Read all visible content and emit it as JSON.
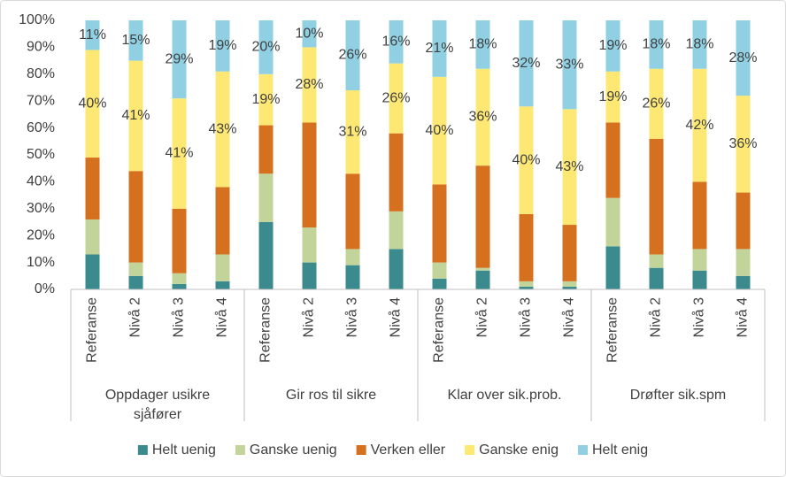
{
  "chart_data": {
    "type": "stacked_bar",
    "categories": [
      "Referanse",
      "Nivå 2",
      "Nivå 3",
      "Nivå 4",
      "Referanse",
      "Nivå 2",
      "Nivå 3",
      "Nivå 4",
      "Referanse",
      "Nivå 2",
      "Nivå 3",
      "Nivå 4",
      "Referanse",
      "Nivå 2",
      "Nivå 3",
      "Nivå 4"
    ],
    "category_groups": [
      "Oppdager usikre sjåfører",
      "Gir ros til sikre",
      "Klar over sik.prob.",
      "Drøfter sik.spm"
    ],
    "series": [
      {
        "name": "Helt uenig",
        "color": "#3b8b8e",
        "values": [
          13,
          5,
          2,
          3,
          25,
          10,
          9,
          15,
          4,
          7,
          1,
          1,
          16,
          8,
          7,
          5
        ]
      },
      {
        "name": "Ganske uenig",
        "color": "#c3d49b",
        "values": [
          13,
          5,
          4,
          10,
          18,
          13,
          6,
          14,
          6,
          1,
          2,
          2,
          18,
          5,
          8,
          10
        ]
      },
      {
        "name": "Verken eller",
        "color": "#d5701f",
        "values": [
          23,
          34,
          24,
          25,
          18,
          39,
          28,
          29,
          29,
          38,
          25,
          21,
          28,
          43,
          25,
          21
        ]
      },
      {
        "name": "Ganske enig",
        "color": "#fde874",
        "values": [
          40,
          41,
          41,
          43,
          19,
          28,
          31,
          26,
          40,
          36,
          40,
          43,
          19,
          26,
          42,
          36
        ],
        "value_labels": [
          "40%",
          "41%",
          "41%",
          "43%",
          "19%",
          "28%",
          "31%",
          "26%",
          "40%",
          "36%",
          "40%",
          "43%",
          "19%",
          "26%",
          "42%",
          "36%"
        ]
      },
      {
        "name": "Helt enig",
        "color": "#90d0e2",
        "values": [
          11,
          15,
          29,
          19,
          20,
          10,
          26,
          16,
          21,
          18,
          32,
          33,
          19,
          18,
          18,
          28
        ],
        "value_labels": [
          "11%",
          "15%",
          "29%",
          "19%",
          "20%",
          "10%",
          "26%",
          "16%",
          "21%",
          "18%",
          "32%",
          "33%",
          "19%",
          "18%",
          "18%",
          "28%"
        ]
      }
    ],
    "ylim": [
      0,
      100
    ],
    "yticks": [
      {
        "value": 0,
        "label": "0%"
      },
      {
        "value": 10,
        "label": "10%"
      },
      {
        "value": 20,
        "label": "20%"
      },
      {
        "value": 30,
        "label": "30%"
      },
      {
        "value": 40,
        "label": "40%"
      },
      {
        "value": 50,
        "label": "50%"
      },
      {
        "value": 60,
        "label": "60%"
      },
      {
        "value": 70,
        "label": "70%"
      },
      {
        "value": 80,
        "label": "80%"
      },
      {
        "value": 90,
        "label": "90%"
      },
      {
        "value": 100,
        "label": "100%"
      }
    ],
    "legend": "bottom"
  }
}
